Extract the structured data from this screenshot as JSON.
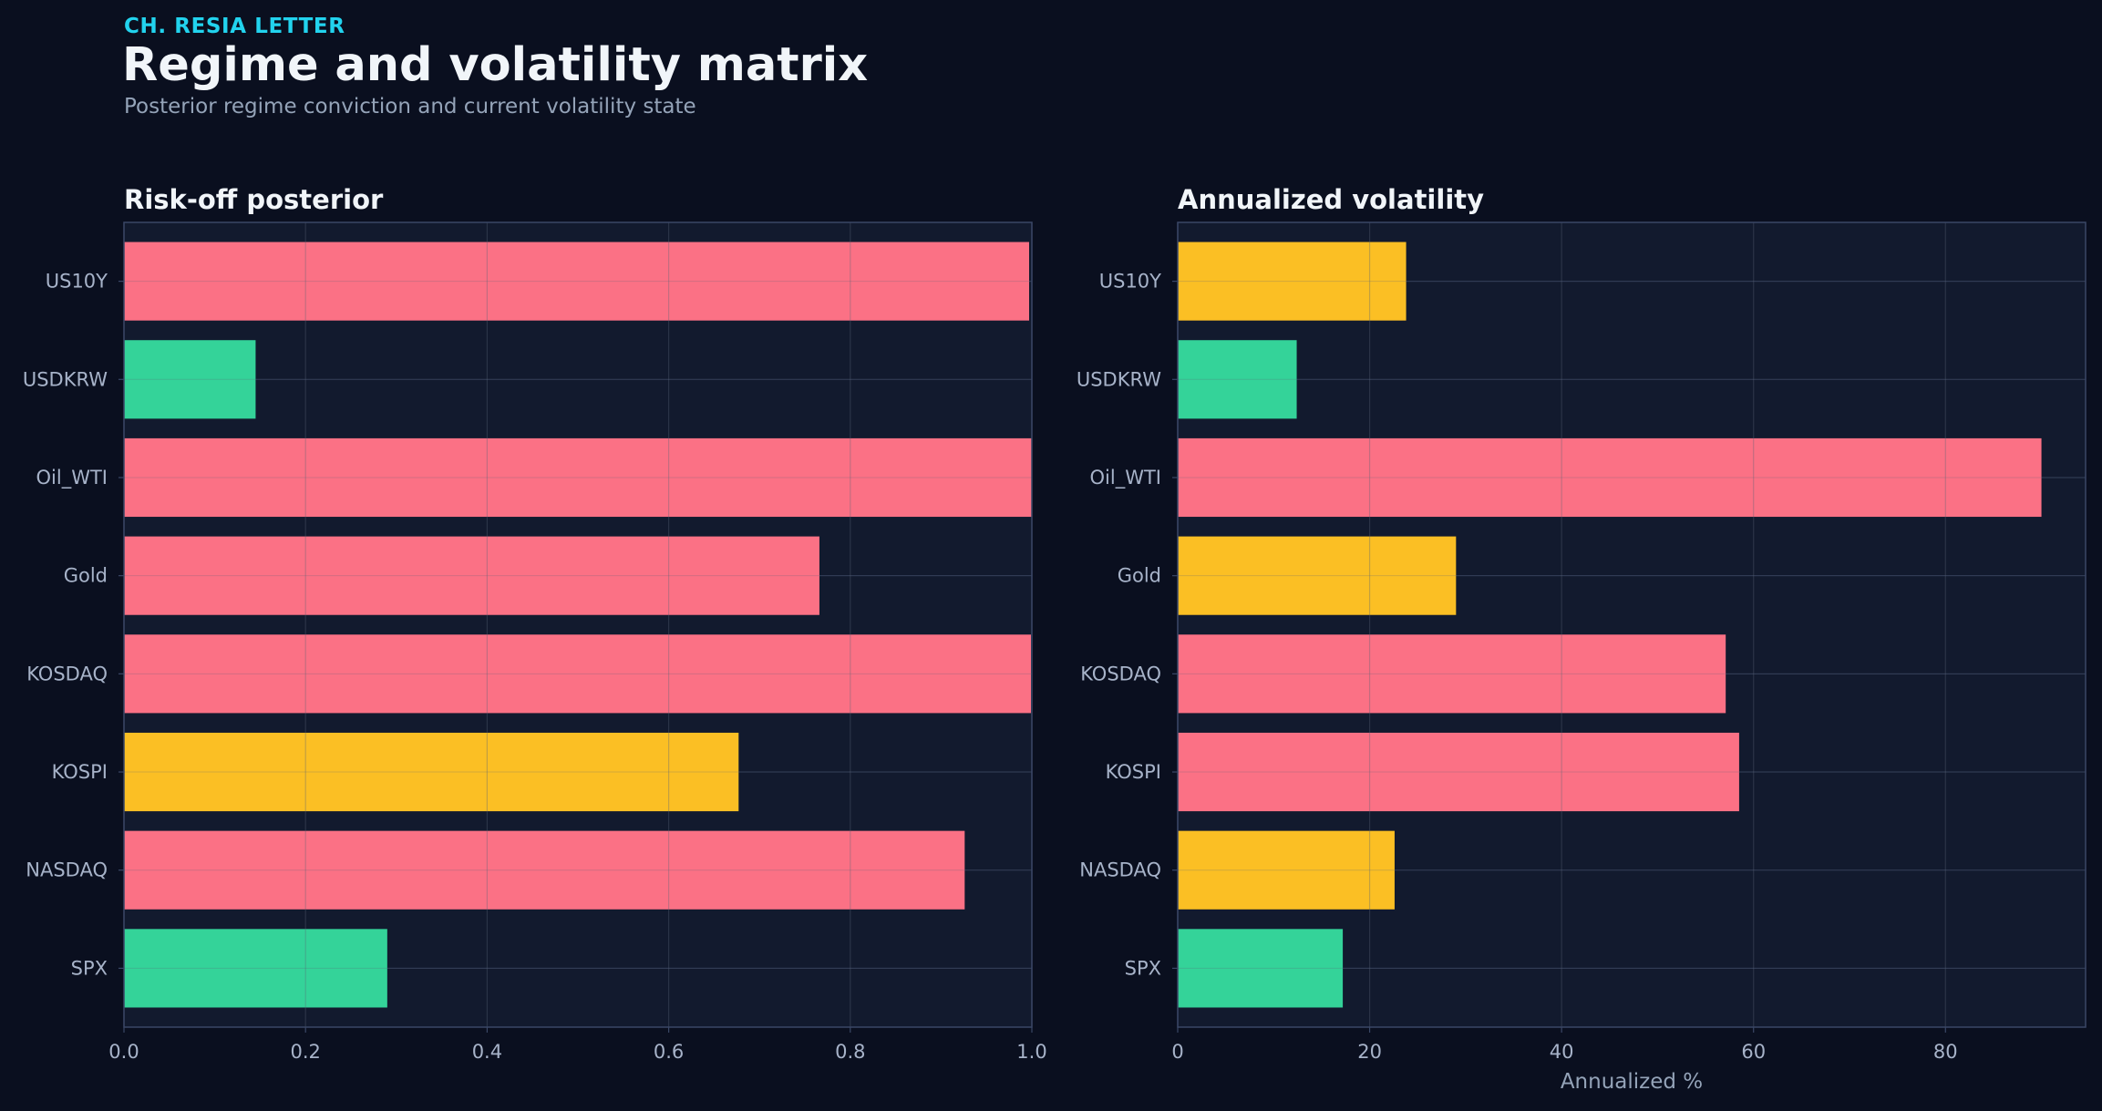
{
  "header": {
    "kicker": "CH. RESIA LETTER",
    "title": "Regime and volatility matrix",
    "subtitle": "Posterior regime conviction and current volatility state"
  },
  "colors": {
    "background": "#0a0f1f",
    "panel_bg": "#121a2e",
    "spine": "#3a4766",
    "grid": "#26304a",
    "kicker": "#22d3ee",
    "title": "#f1f5f9",
    "subtitle": "#94a3b8",
    "tick_text": "#a7b3c9",
    "risk_off": "#fb7185",
    "neutral": "#fbbf24",
    "risk_on": "#34d399"
  },
  "chart_data": [
    {
      "type": "bar",
      "orientation": "horizontal",
      "title": "Risk-off posterior",
      "xlabel": "",
      "ylabel": "",
      "categories": [
        "US10Y",
        "USDKRW",
        "Oil_WTI",
        "Gold",
        "KOSDAQ",
        "KOSPI",
        "NASDAQ",
        "SPX"
      ],
      "values": [
        0.997,
        0.145,
        1.0,
        0.766,
        0.999,
        0.677,
        0.926,
        0.29
      ],
      "bar_colors": [
        "risk_off",
        "risk_on",
        "risk_off",
        "risk_off",
        "risk_off",
        "neutral",
        "risk_off",
        "risk_on"
      ],
      "xlim": [
        0,
        1.0
      ],
      "xticks": [
        0,
        0.2,
        0.4,
        0.6,
        0.8,
        1.0
      ],
      "xtick_labels": [
        "0.0",
        "0.2",
        "0.4",
        "0.6",
        "0.8",
        "1.0"
      ],
      "grid": true
    },
    {
      "type": "bar",
      "orientation": "horizontal",
      "title": "Annualized volatility",
      "xlabel": "Annualized %",
      "ylabel": "",
      "categories": [
        "US10Y",
        "USDKRW",
        "Oil_WTI",
        "Gold",
        "KOSDAQ",
        "KOSPI",
        "NASDAQ",
        "SPX"
      ],
      "values": [
        23.8,
        12.4,
        90.0,
        29.0,
        57.1,
        58.5,
        22.6,
        17.2
      ],
      "bar_colors": [
        "neutral",
        "risk_on",
        "risk_off",
        "neutral",
        "risk_off",
        "risk_off",
        "neutral",
        "risk_on"
      ],
      "xlim": [
        0,
        94.6
      ],
      "xticks": [
        0,
        20,
        40,
        60,
        80
      ],
      "xtick_labels": [
        "0",
        "20",
        "40",
        "60",
        "80"
      ],
      "grid": true
    }
  ]
}
